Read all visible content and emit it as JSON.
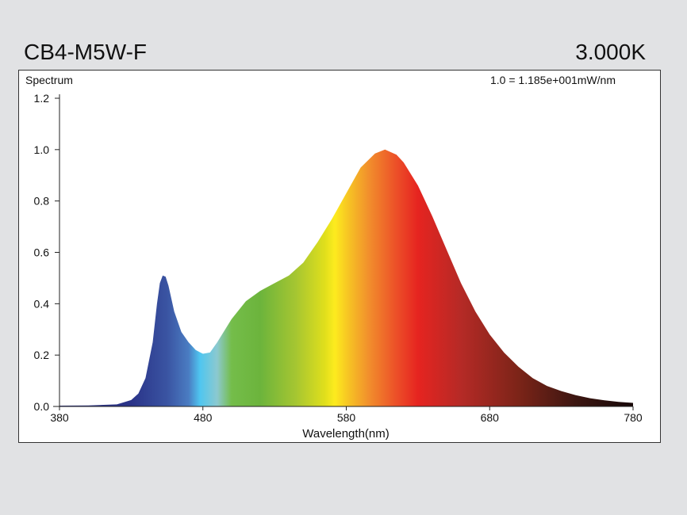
{
  "header": {
    "model": "CB4-M5W-F",
    "cct": "3.000K"
  },
  "chart_data": {
    "type": "area",
    "title": "Spectrum",
    "scale_note": "1.0 = 1.185e+001mW/nm",
    "xlabel": "Wavelength(nm)",
    "ylabel": "",
    "xlim": [
      380,
      780
    ],
    "ylim": [
      0,
      1.2
    ],
    "xticks": [
      "380",
      "480",
      "580",
      "680",
      "780"
    ],
    "yticks": [
      "0.0",
      "0.2",
      "0.4",
      "0.6",
      "0.8",
      "1.0",
      "1.2"
    ],
    "grid": false,
    "x": [
      380,
      400,
      420,
      430,
      435,
      440,
      445,
      448,
      450,
      452,
      454,
      456,
      460,
      465,
      470,
      475,
      480,
      485,
      490,
      500,
      510,
      520,
      530,
      540,
      550,
      560,
      570,
      580,
      590,
      600,
      607,
      615,
      620,
      630,
      640,
      650,
      660,
      670,
      680,
      690,
      700,
      710,
      720,
      730,
      740,
      750,
      760,
      770,
      780
    ],
    "y": [
      0.003,
      0.004,
      0.008,
      0.025,
      0.05,
      0.11,
      0.25,
      0.4,
      0.48,
      0.51,
      0.505,
      0.47,
      0.37,
      0.29,
      0.25,
      0.22,
      0.205,
      0.21,
      0.25,
      0.34,
      0.41,
      0.45,
      0.48,
      0.51,
      0.56,
      0.64,
      0.73,
      0.83,
      0.93,
      0.985,
      1.0,
      0.98,
      0.95,
      0.86,
      0.74,
      0.61,
      0.48,
      0.37,
      0.28,
      0.21,
      0.155,
      0.11,
      0.08,
      0.06,
      0.044,
      0.032,
      0.024,
      0.018,
      0.014
    ],
    "colors": [
      {
        "nm": 380,
        "color": "#2a2f80"
      },
      {
        "nm": 430,
        "color": "#2a3388"
      },
      {
        "nm": 455,
        "color": "#3a54a2"
      },
      {
        "nm": 470,
        "color": "#4a7cc2"
      },
      {
        "nm": 478,
        "color": "#4fc6f0"
      },
      {
        "nm": 490,
        "color": "#8cc9cf"
      },
      {
        "nm": 500,
        "color": "#74bd4a"
      },
      {
        "nm": 520,
        "color": "#6cb43c"
      },
      {
        "nm": 545,
        "color": "#a6c631"
      },
      {
        "nm": 565,
        "color": "#e0df1c"
      },
      {
        "nm": 572,
        "color": "#fdeb1e"
      },
      {
        "nm": 582,
        "color": "#f6c224"
      },
      {
        "nm": 595,
        "color": "#f2912c"
      },
      {
        "nm": 615,
        "color": "#ec4f28"
      },
      {
        "nm": 630,
        "color": "#e62420"
      },
      {
        "nm": 660,
        "color": "#b52a26"
      },
      {
        "nm": 700,
        "color": "#7c2418"
      },
      {
        "nm": 740,
        "color": "#3c1611"
      },
      {
        "nm": 780,
        "color": "#170808"
      }
    ]
  }
}
